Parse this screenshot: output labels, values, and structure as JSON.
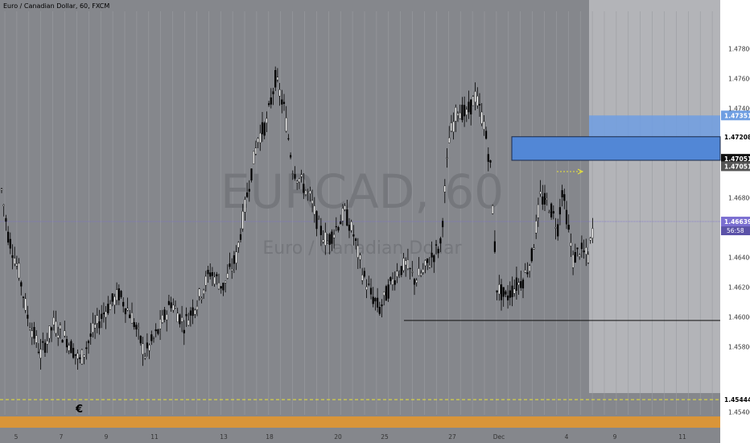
{
  "header": {
    "instrument_title": "Euro / Canadian Dollar, 60, FXCM"
  },
  "watermark": {
    "symbol": "EURCAD, 60",
    "name": "Euro / Canadian Dollar"
  },
  "colors": {
    "plot_bg": "#85878c",
    "future_zone": "#b3b4b8",
    "blue_zone": "#5287d6",
    "blue_zone_light": "#6e9ee2",
    "candle": "#000000",
    "grid_line": "#9a9ca1",
    "price_line": "#7b6fd1",
    "yellow_line": "#e8e33a",
    "orange_bar": "#d99539",
    "axis_bg": "#ffffff",
    "axis_text": "#333333"
  },
  "chart_data": {
    "type": "candlestick",
    "title": "Euro / Canadian Dollar, 60, FXCM",
    "ylim": [
      1.4525,
      1.4805
    ],
    "y_ticks": [
      1.458,
      1.46,
      1.462,
      1.464,
      1.468,
      1.476,
      1.478
    ],
    "y_tick_labels": [
      "1.45800",
      "1.46000",
      "1.46200",
      "1.46400",
      "1.46800",
      "1.47600",
      "1.47800"
    ],
    "top_partial_label": "1.47400",
    "bottom_partial_label": "1.45400",
    "x_tick_labels": [
      "5",
      "7",
      "9",
      "11",
      "13",
      "18",
      "20",
      "25",
      "27",
      "Dec",
      "4",
      "9",
      "11",
      "16"
    ],
    "series": [
      {
        "trend_points": [
          [
            0,
            1.4685
          ],
          [
            3,
            1.4655
          ],
          [
            8,
            1.463
          ],
          [
            12,
            1.46
          ],
          [
            18,
            1.4575
          ],
          [
            24,
            1.4595
          ],
          [
            30,
            1.4585
          ],
          [
            36,
            1.457
          ],
          [
            42,
            1.459
          ],
          [
            48,
            1.4605
          ],
          [
            54,
            1.4615
          ],
          [
            60,
            1.46
          ],
          [
            66,
            1.4575
          ],
          [
            72,
            1.459
          ],
          [
            78,
            1.461
          ],
          [
            84,
            1.4595
          ],
          [
            90,
            1.461
          ],
          [
            96,
            1.463
          ],
          [
            102,
            1.462
          ],
          [
            108,
            1.464
          ],
          [
            114,
            1.469
          ],
          [
            118,
            1.472
          ],
          [
            122,
            1.473
          ],
          [
            126,
            1.476
          ],
          [
            130,
            1.474
          ],
          [
            134,
            1.47
          ],
          [
            138,
            1.469
          ],
          [
            142,
            1.468
          ],
          [
            146,
            1.466
          ],
          [
            150,
            1.465
          ],
          [
            154,
            1.466
          ],
          [
            158,
            1.467
          ],
          [
            162,
            1.4655
          ],
          [
            166,
            1.463
          ],
          [
            170,
            1.4615
          ],
          [
            174,
            1.4605
          ],
          [
            178,
            1.4618
          ],
          [
            182,
            1.463
          ],
          [
            186,
            1.4635
          ],
          [
            190,
            1.4625
          ],
          [
            194,
            1.463
          ],
          [
            198,
            1.464
          ],
          [
            202,
            1.4648
          ],
          [
            206,
            1.472
          ],
          [
            210,
            1.474
          ],
          [
            214,
            1.4735
          ],
          [
            218,
            1.4748
          ],
          [
            222,
            1.473
          ],
          [
            225,
            1.47
          ],
          [
            228,
            1.462
          ],
          [
            232,
            1.4612
          ],
          [
            236,
            1.462
          ],
          [
            240,
            1.4625
          ],
          [
            244,
            1.464
          ],
          [
            248,
            1.468
          ],
          [
            252,
            1.4675
          ],
          [
            256,
            1.466
          ],
          [
            258,
            1.4685
          ],
          [
            260,
            1.4668
          ],
          [
            263,
            1.4638
          ],
          [
            266,
            1.4645
          ],
          [
            270,
            1.464
          ],
          [
            272,
            1.4658
          ]
        ]
      }
    ],
    "annotations": {
      "blue_zone_outer": [
        1.4705,
        1.47351
      ],
      "blue_zone_inner": [
        1.4705,
        1.47208
      ],
      "horizontal_line": 1.45975,
      "current_price_line": 1.46639,
      "yellow_dashed_line": 1.45444,
      "marker_symbol": "€"
    },
    "price_labels": {
      "upper_blue": "1.47351",
      "zone_top": "1.47208",
      "zone_bottom": "1.47051",
      "zone_bottom_dup": "1.47051",
      "current_price": "1.46639",
      "countdown": "56:58",
      "yellow_line": "1.45444"
    }
  }
}
